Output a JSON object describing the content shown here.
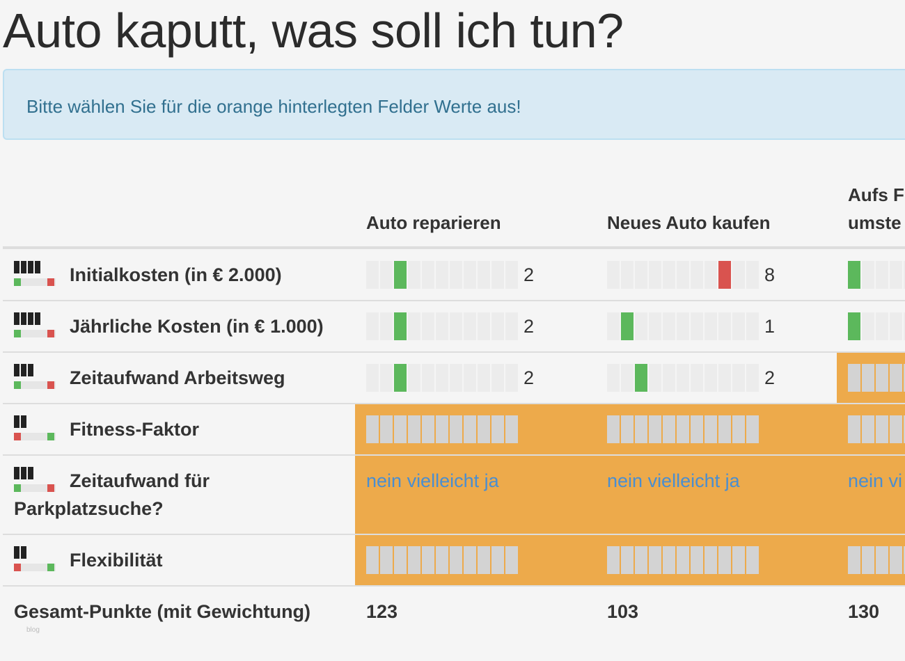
{
  "page": {
    "title": "Auto kaputt, was soll ich tun?"
  },
  "alert": {
    "text": "Bitte wählen Sie für die orange hinterlegten Felder Werte aus!"
  },
  "columns": [
    {
      "label": "Auto reparieren"
    },
    {
      "label": "Neues Auto kaufen"
    },
    {
      "label_line1": "Aufs F",
      "label_line2": "umste"
    }
  ],
  "rows": [
    {
      "label": "Initialkosten (in € 2.000)",
      "weight": 4,
      "direction": "low-good",
      "cells": [
        {
          "value": "2",
          "color": "#5cb85c"
        },
        {
          "value": "8",
          "color": "#d9534f"
        },
        {
          "value": "",
          "color": "#5cb85c"
        }
      ]
    },
    {
      "label": "Jährliche Kosten (in € 1.000)",
      "weight": 4,
      "direction": "low-good",
      "cells": [
        {
          "value": "2",
          "color": "#5cb85c"
        },
        {
          "value": "1",
          "color": "#5cb85c"
        },
        {
          "value": "",
          "color": "#5cb85c"
        }
      ]
    },
    {
      "label": "Zeitaufwand Arbeitsweg",
      "weight": 3,
      "direction": "low-good",
      "cells": [
        {
          "value": "2",
          "color": "#5cb85c"
        },
        {
          "value": "2",
          "color": "#5cb85c"
        },
        {
          "value": "",
          "state": "unselected"
        }
      ]
    },
    {
      "label": "Fitness-Faktor",
      "weight": 2,
      "direction": "high-good",
      "cells": [
        {
          "state": "unselected"
        },
        {
          "state": "unselected"
        },
        {
          "state": "unselected"
        }
      ]
    },
    {
      "label_line1": "Zeitaufwand für",
      "label_line2": "Parkplatzsuche?",
      "weight": 3,
      "direction": "low-good",
      "options": [
        "nein",
        "vielleicht",
        "ja"
      ],
      "option_truncated": "nein vi"
    },
    {
      "label": "Flexibilität",
      "weight": 2,
      "direction": "high-good",
      "cells": [
        {
          "state": "unselected"
        },
        {
          "state": "unselected"
        },
        {
          "state": "unselected"
        }
      ]
    }
  ],
  "totals": {
    "label": "Gesamt-Punkte (mit Gewichtung)",
    "values": [
      "123",
      "103",
      "130"
    ]
  },
  "watermark": "blog",
  "colors": {
    "highlight": "#edaa4b",
    "good": "#5cb85c",
    "bad": "#d9534f",
    "link": "#4a8ed0"
  }
}
